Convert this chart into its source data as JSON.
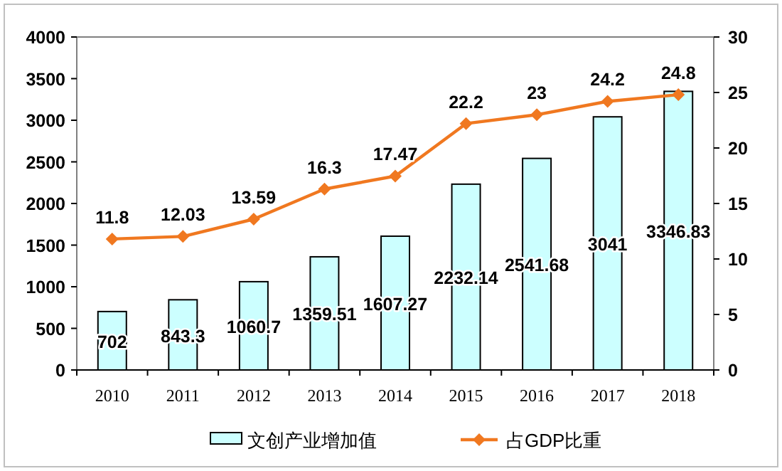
{
  "chart_data": {
    "type": "bar",
    "categories": [
      "2010",
      "2011",
      "2012",
      "2013",
      "2014",
      "2015",
      "2016",
      "2017",
      "2018"
    ],
    "series": [
      {
        "name": "文创产业增加值",
        "color": "#ccffff",
        "values": [
          702,
          843.3,
          1060.7,
          1359.51,
          1607.27,
          2232.14,
          2541.68,
          3041,
          3346.83
        ]
      },
      {
        "name": "占GDP比重",
        "type": "line",
        "axis": "y2",
        "color": "#f07820",
        "values": [
          11.8,
          12.03,
          13.59,
          16.3,
          17.47,
          22.2,
          23,
          24.2,
          24.8
        ]
      }
    ],
    "ylim": [
      0,
      4000
    ],
    "yticks": [
      0,
      500,
      1000,
      1500,
      2000,
      2500,
      3000,
      3500,
      4000
    ],
    "y2lim": [
      0,
      30
    ],
    "y2ticks": [
      0,
      5,
      10,
      15,
      20,
      25,
      30
    ],
    "data_labels": true,
    "marker": "diamond",
    "legend": "bottom",
    "grid": false
  }
}
